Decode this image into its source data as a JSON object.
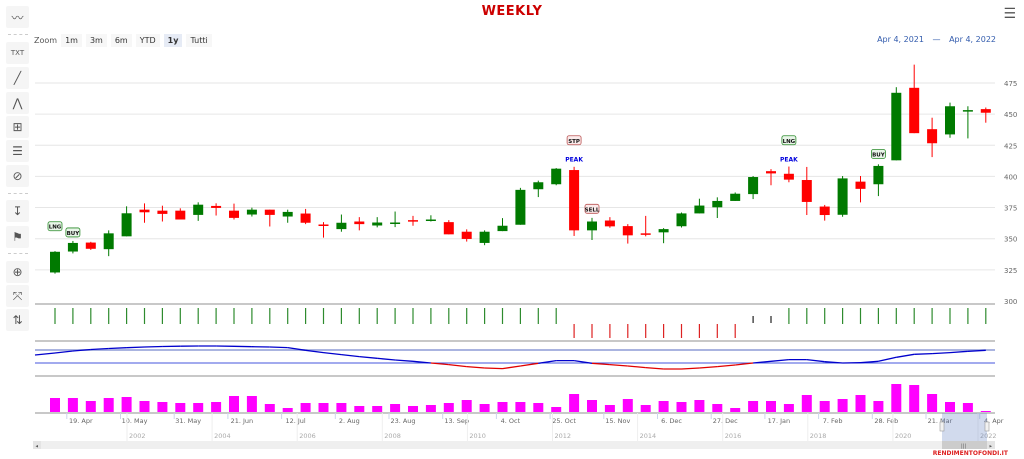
{
  "title": "WEEKLY",
  "menu_icon": "hamburger-menu-icon",
  "toolbar": [
    {
      "icon": "indicators-icon",
      "glyph": "〰"
    },
    {
      "icon": "text-annotation-icon",
      "glyph": "TXT"
    },
    {
      "icon": "line-icon",
      "glyph": "╱"
    },
    {
      "icon": "elliott-wave-icon",
      "glyph": "⋀"
    },
    {
      "icon": "crosshair-icon",
      "glyph": "⊞"
    },
    {
      "icon": "fibonacci-icon",
      "glyph": "☰"
    },
    {
      "icon": "hide-annotations-icon",
      "glyph": "⊘"
    },
    {
      "icon": "vertical-counter-icon",
      "glyph": "↧"
    },
    {
      "icon": "flag-icon",
      "glyph": "⚑"
    },
    {
      "icon": "zoom-change-icon",
      "glyph": "⊕"
    },
    {
      "icon": "fullscreen-icon",
      "glyph": "⤧"
    },
    {
      "icon": "price-indicator-icon",
      "glyph": "⇅"
    }
  ],
  "zoom": {
    "label": "Zoom",
    "buttons": [
      "1m",
      "3m",
      "6m",
      "YTD",
      "1y",
      "Tutti"
    ],
    "active": "1y"
  },
  "range": {
    "from": "Apr 4, 2021",
    "sep": "—",
    "to": "Apr 4, 2022"
  },
  "watermark": "RENDIMENTOFONDI.IT",
  "colors": {
    "up": "#007a00",
    "down": "#ff0000",
    "volume": "#ff00ff",
    "osc_pos": "#0000cc",
    "osc_neg": "#e00000",
    "title": "#cc0000",
    "range": "#335cad"
  },
  "chart_data": {
    "type": "candlestick",
    "ylim": [
      300,
      490
    ],
    "yticks": [
      300,
      325,
      350,
      375,
      400,
      425,
      450,
      475
    ],
    "xlabels": [
      "19. Apr",
      "10. May",
      "31. May",
      "21. Jun",
      "12. Jul",
      "2. Aug",
      "23. Aug",
      "13. Sep",
      "4. Oct",
      "25. Oct",
      "15. Nov",
      "6. Dec",
      "27. Dec",
      "17. Jan",
      "7. Feb",
      "28. Feb",
      "21. Mar",
      "4. Apr"
    ],
    "navigator_years": [
      "2002",
      "2004",
      "2006",
      "2008",
      "2010",
      "2012",
      "2014",
      "2016",
      "2018",
      "2020",
      "2022"
    ],
    "ohlc": [
      [
        322.9,
        340,
        322,
        339.5
      ],
      [
        339.7,
        348.2,
        338.2,
        346.6
      ],
      [
        346.9,
        347.5,
        341,
        341.9
      ],
      [
        341.6,
        356.7,
        336,
        354.3
      ],
      [
        351.9,
        376,
        351.9,
        370.4
      ],
      [
        373.3,
        378.4,
        362.8,
        371.2
      ],
      [
        372.5,
        376.5,
        363.8,
        369.9
      ],
      [
        372.5,
        374.4,
        365.4,
        365.4
      ],
      [
        369.1,
        379.2,
        364.3,
        377.3
      ],
      [
        376.3,
        378.4,
        368.6,
        374.7
      ],
      [
        372.5,
        378.1,
        365.4,
        366.7
      ],
      [
        369.4,
        374.9,
        367.8,
        373.3
      ],
      [
        373.3,
        373.3,
        359.8,
        369.1
      ],
      [
        367.8,
        373.3,
        362.8,
        371.5
      ],
      [
        370.2,
        373.9,
        361.7,
        362.8
      ],
      [
        361.4,
        363.3,
        350.9,
        360.6
      ],
      [
        357.7,
        369.4,
        355.6,
        362.8
      ],
      [
        363.8,
        367.3,
        356.7,
        361.7
      ],
      [
        360.6,
        367.3,
        359.1,
        363.0
      ],
      [
        362,
        371.8,
        359.3,
        363
      ],
      [
        364.9,
        368.3,
        360.4,
        364.4
      ],
      [
        364.4,
        368.8,
        363.8,
        365.4
      ],
      [
        363.3,
        364.9,
        353.5,
        353.5
      ],
      [
        355.6,
        357.5,
        347.7,
        349.8
      ],
      [
        346.6,
        356.7,
        344.8,
        355.6
      ],
      [
        356.1,
        366.5,
        356.1,
        360.4
      ],
      [
        361.2,
        390.8,
        361.2,
        389.2
      ],
      [
        389.7,
        396.6,
        383.4,
        395.3
      ],
      [
        393.7,
        406.7,
        392.9,
        406.2
      ],
      [
        405.1,
        407.7,
        352.2,
        356.7
      ],
      [
        356.7,
        366.7,
        349,
        363.8
      ],
      [
        364.6,
        367.3,
        358.8,
        359.9
      ],
      [
        360.1,
        361.7,
        346.1,
        352.7
      ],
      [
        354.3,
        368.3,
        351.9,
        353.5
      ],
      [
        355.1,
        358.5,
        346.4,
        357.7
      ],
      [
        360,
        371,
        359,
        370.3
      ],
      [
        370.3,
        382.1,
        370.3,
        376.6
      ],
      [
        375.2,
        383.2,
        366.6,
        380.3
      ],
      [
        380.3,
        387.1,
        380.3,
        386.1
      ],
      [
        385.8,
        400.3,
        381.8,
        399.5
      ],
      [
        404.2,
        405.8,
        392.9,
        402.4
      ],
      [
        402.1,
        407.9,
        395.3,
        397.4
      ],
      [
        397.1,
        407.6,
        369,
        379.5
      ],
      [
        375.8,
        377.1,
        364.5,
        369
      ],
      [
        369.2,
        400.3,
        367.6,
        398.4
      ],
      [
        395.8,
        400.3,
        379.2,
        390
      ],
      [
        393.7,
        409.7,
        384.2,
        408.4
      ],
      [
        412.9,
        471.6,
        412.9,
        467.1
      ],
      [
        471.1,
        489.7,
        434.7,
        434.7
      ],
      [
        437.9,
        447.1,
        415.5,
        426.6
      ],
      [
        433.7,
        459.2,
        431,
        456.3
      ],
      [
        452.4,
        456.3,
        430.5,
        453.2
      ],
      [
        454,
        455.3,
        443.1,
        451.1
      ]
    ],
    "annotations": [
      {
        "index": 0,
        "text": "LNG",
        "style": "box-green",
        "price": 358
      },
      {
        "index": 1,
        "text": "BUY",
        "style": "box-green",
        "price": 353
      },
      {
        "index": 29,
        "text": "STP",
        "style": "box-red",
        "price": 427
      },
      {
        "index": 29,
        "text": "PEAK",
        "style": "blue",
        "price": 412
      },
      {
        "index": 30,
        "text": "SELL",
        "style": "box-red",
        "price": 372
      },
      {
        "index": 41,
        "text": "LNG",
        "style": "box-green",
        "price": 427
      },
      {
        "index": 41,
        "text": "PEAK",
        "style": "blue",
        "price": 412
      },
      {
        "index": 46,
        "text": "BUY",
        "style": "box-green",
        "price": 416
      }
    ],
    "signals": [
      "long",
      "long",
      "long",
      "long",
      "long",
      "long",
      "long",
      "long",
      "long",
      "long",
      "long",
      "long",
      "long",
      "long",
      "long",
      "long",
      "long",
      "long",
      "long",
      "long",
      "long",
      "long",
      "long",
      "long",
      "long",
      "long",
      "long",
      "long",
      "long",
      "short",
      "short",
      "short",
      "short",
      "short",
      "short",
      "short",
      "short",
      "short",
      "short",
      "neutral",
      "neutral",
      "long",
      "long",
      "long",
      "long",
      "long",
      "long",
      "long",
      "long",
      "long",
      "long",
      "long",
      "long"
    ],
    "oscillator": [
      10,
      12,
      13.5,
      14.5,
      15.3,
      16,
      16.5,
      16.8,
      17,
      17,
      16.7,
      16.3,
      16,
      15.4,
      12.7,
      10.4,
      8.4,
      6.4,
      4.7,
      3,
      1.7,
      0,
      -1.6,
      -3.6,
      -5,
      -5.6,
      -3,
      -0.3,
      2.4,
      2.4,
      -0.3,
      -1.6,
      -3,
      -4.6,
      -6,
      -6,
      -5,
      -3.6,
      -2,
      0,
      1.7,
      3.4,
      3.4,
      1.3,
      0,
      0.3,
      1.7,
      5.7,
      8.7,
      9.4,
      10.4,
      11.7,
      12.7
    ],
    "volume": [
      14,
      14,
      11,
      14,
      15,
      11,
      10,
      9,
      9,
      10,
      16,
      16,
      8,
      4,
      9,
      9,
      9,
      6,
      6,
      8,
      6,
      7,
      9,
      12,
      8,
      10,
      10,
      9,
      5,
      18,
      12,
      7,
      13,
      7,
      11,
      10,
      12,
      8,
      4,
      11,
      11,
      8,
      17,
      11,
      13,
      17,
      11,
      28,
      27,
      18,
      10,
      9,
      1
    ]
  }
}
